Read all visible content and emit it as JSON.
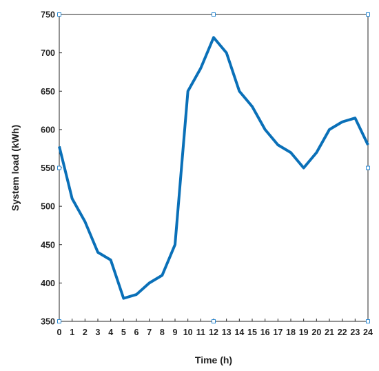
{
  "chart_data": {
    "type": "line",
    "title": "",
    "xlabel": "Time  (h)",
    "ylabel": "System load  (kWh)",
    "xlim": [
      0,
      24
    ],
    "ylim": [
      350,
      750
    ],
    "xticks": [
      0,
      1,
      2,
      3,
      4,
      5,
      6,
      7,
      8,
      9,
      10,
      11,
      12,
      13,
      14,
      15,
      16,
      17,
      18,
      19,
      20,
      21,
      22,
      23,
      24
    ],
    "yticks": [
      350,
      400,
      450,
      500,
      550,
      600,
      650,
      700,
      750
    ],
    "grid": false,
    "legend": "none",
    "series": [
      {
        "color": "#0a70b8",
        "x": [
          0,
          1,
          2,
          3,
          4,
          5,
          6,
          7,
          8,
          9,
          10,
          11,
          12,
          13,
          14,
          15,
          16,
          17,
          18,
          19,
          20,
          21,
          22,
          23,
          24
        ],
        "y": [
          578,
          510,
          480,
          440,
          430,
          380,
          385,
          400,
          410,
          450,
          650,
          680,
          720,
          700,
          650,
          630,
          600,
          580,
          570,
          550,
          570,
          600,
          610,
          615,
          580
        ]
      }
    ],
    "marker_color": "#2a8ad4",
    "axis_color": "#262626"
  }
}
